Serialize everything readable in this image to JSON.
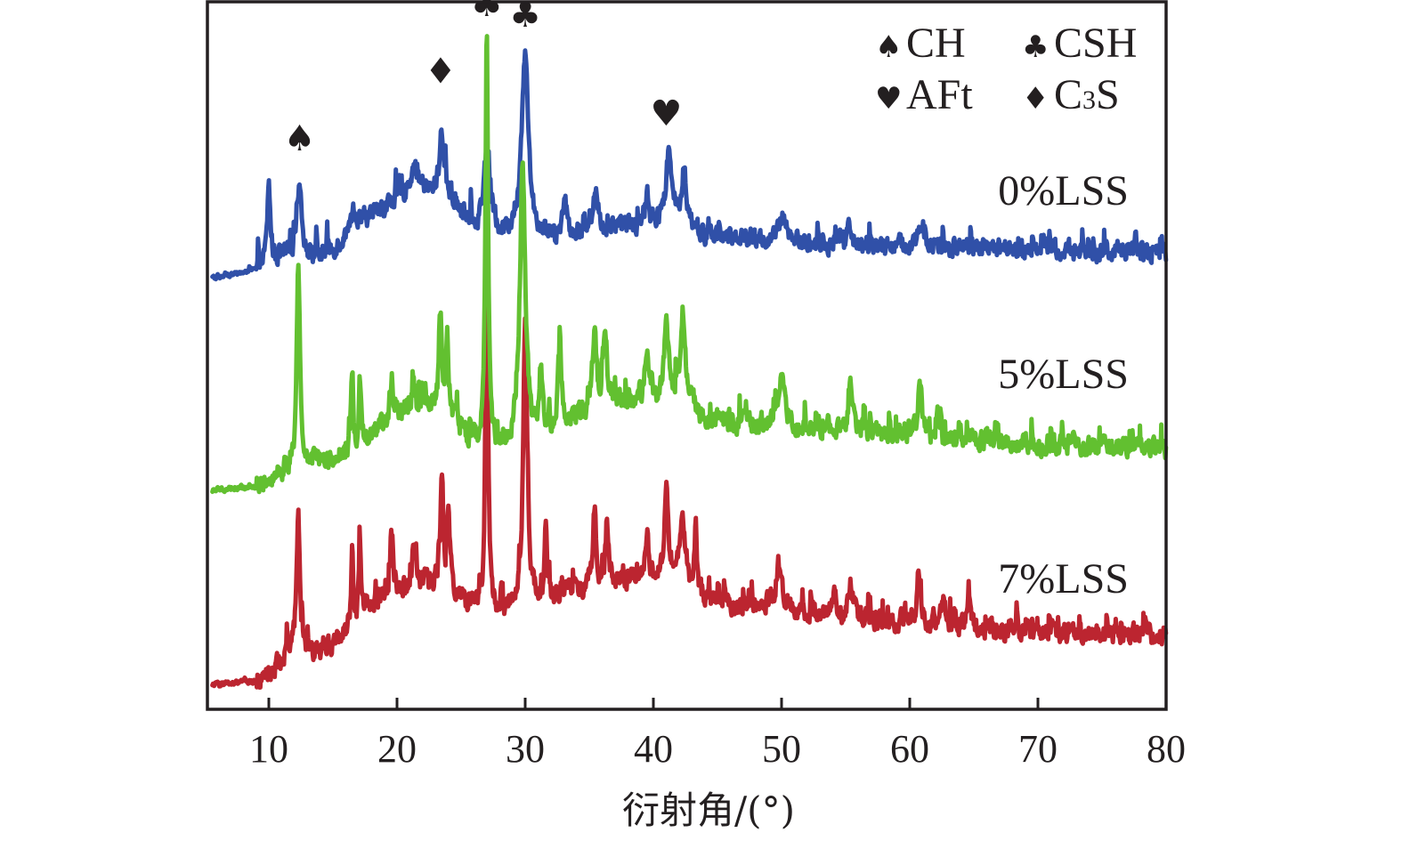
{
  "chart_data": {
    "type": "line",
    "title": "",
    "xlabel": "衍射角/(°)",
    "ylabel": "",
    "xlim": [
      5.2,
      80
    ],
    "ylim": [
      0,
      100
    ],
    "x_ticks": [
      10,
      20,
      30,
      40,
      50,
      60,
      70,
      80
    ],
    "x_tick_labels": [
      "10",
      "20",
      "30",
      "40",
      "50",
      "60",
      "70",
      "80"
    ],
    "y_ticks_shown": false,
    "grid": false,
    "intensity_units": "arbitrary (stacked, offset)",
    "series": [
      {
        "name": "0%LSS",
        "color": "#3050a8",
        "baseline": [
          [
            6,
            61
          ],
          [
            9,
            62
          ],
          [
            11,
            64
          ],
          [
            13,
            63.5
          ],
          [
            15,
            65
          ],
          [
            17,
            69
          ],
          [
            20,
            72
          ],
          [
            22,
            73.5
          ],
          [
            24,
            72.5
          ],
          [
            26,
            68
          ],
          [
            28,
            67.5
          ],
          [
            32,
            67
          ],
          [
            36,
            68
          ],
          [
            40,
            68.5
          ],
          [
            42,
            70
          ],
          [
            44,
            67
          ],
          [
            50,
            66
          ],
          [
            60,
            65.5
          ],
          [
            70,
            65
          ],
          [
            80,
            64.5
          ]
        ],
        "peaks": [
          [
            10.0,
            74,
            0.15
          ],
          [
            12.4,
            74,
            0.25
          ],
          [
            16.6,
            70,
            0.12
          ],
          [
            19.6,
            72,
            0.15
          ],
          [
            21.3,
            76.5,
            0.4
          ],
          [
            23.5,
            82,
            0.2
          ],
          [
            27.0,
            79,
            0.3
          ],
          [
            30.0,
            93,
            0.3
          ],
          [
            33.1,
            73.5,
            0.15
          ],
          [
            35.5,
            73.5,
            0.2
          ],
          [
            39.5,
            73,
            0.2
          ],
          [
            41.2,
            79,
            0.25
          ],
          [
            42.4,
            77,
            0.2
          ],
          [
            50.1,
            70,
            0.3
          ],
          [
            55.3,
            68.5,
            0.2
          ],
          [
            60.9,
            69,
            0.25
          ],
          [
            70.4,
            67,
            0.1
          ],
          [
            77.6,
            67,
            0.1
          ]
        ],
        "noise": 1.4,
        "label": "0%LSS"
      },
      {
        "name": "5%LSS",
        "color": "#62c030",
        "baseline": [
          [
            6,
            31
          ],
          [
            9,
            31.5
          ],
          [
            11,
            33.5
          ],
          [
            13,
            34.5
          ],
          [
            16,
            36
          ],
          [
            18,
            39
          ],
          [
            20,
            41
          ],
          [
            22,
            42.5
          ],
          [
            24,
            42
          ],
          [
            26,
            37.5
          ],
          [
            28,
            37
          ],
          [
            32,
            40
          ],
          [
            36,
            43
          ],
          [
            40,
            44
          ],
          [
            42,
            45
          ],
          [
            44,
            41
          ],
          [
            50,
            40
          ],
          [
            56,
            39
          ],
          [
            62,
            38.5
          ],
          [
            70,
            37.5
          ],
          [
            80,
            37
          ]
        ],
        "peaks": [
          [
            12.3,
            63,
            0.15
          ],
          [
            16.5,
            48,
            0.1
          ],
          [
            17.1,
            47,
            0.1
          ],
          [
            19.6,
            47,
            0.15
          ],
          [
            21.3,
            46.5,
            0.15
          ],
          [
            23.4,
            56,
            0.15
          ],
          [
            23.9,
            52,
            0.15
          ],
          [
            27.0,
            95.5,
            0.12
          ],
          [
            29.8,
            76,
            0.25
          ],
          [
            31.2,
            49,
            0.15
          ],
          [
            32.7,
            52,
            0.15
          ],
          [
            35.4,
            53,
            0.2
          ],
          [
            36.2,
            53,
            0.2
          ],
          [
            39.5,
            51,
            0.2
          ],
          [
            41.0,
            55,
            0.2
          ],
          [
            42.3,
            54,
            0.25
          ],
          [
            50.0,
            47.5,
            0.3
          ],
          [
            55.4,
            45.5,
            0.25
          ],
          [
            60.8,
            45.5,
            0.2
          ],
          [
            62.2,
            42,
            0.15
          ]
        ],
        "noise": 1.5,
        "label": "5%LSS"
      },
      {
        "name": "7%LSS",
        "color": "#bc2530",
        "baseline": [
          [
            6,
            3.5
          ],
          [
            9,
            4
          ],
          [
            11,
            6.5
          ],
          [
            12,
            9
          ],
          [
            13,
            7.5
          ],
          [
            15,
            9
          ],
          [
            16.5,
            11.5
          ],
          [
            18,
            15
          ],
          [
            20,
            17
          ],
          [
            22,
            18
          ],
          [
            24,
            17.5
          ],
          [
            26,
            14
          ],
          [
            28,
            14
          ],
          [
            32,
            16
          ],
          [
            36,
            18
          ],
          [
            40,
            19
          ],
          [
            42,
            20
          ],
          [
            44,
            15.5
          ],
          [
            50,
            14
          ],
          [
            56,
            13
          ],
          [
            62,
            12
          ],
          [
            70,
            11
          ],
          [
            80,
            10.5
          ]
        ],
        "peaks": [
          [
            12.3,
            27,
            0.15
          ],
          [
            16.5,
            23,
            0.1
          ],
          [
            17.1,
            23.5,
            0.1
          ],
          [
            19.6,
            24.5,
            0.12
          ],
          [
            21.3,
            23,
            0.15
          ],
          [
            23.5,
            32,
            0.15
          ],
          [
            24.0,
            28,
            0.15
          ],
          [
            27.0,
            64,
            0.12
          ],
          [
            30.0,
            56,
            0.18
          ],
          [
            31.6,
            28.5,
            0.1
          ],
          [
            35.4,
            29,
            0.15
          ],
          [
            36.4,
            26,
            0.15
          ],
          [
            39.5,
            25,
            0.15
          ],
          [
            41.0,
            32,
            0.15
          ],
          [
            42.3,
            27.5,
            0.2
          ],
          [
            43.3,
            26.5,
            0.1
          ],
          [
            49.8,
            20.5,
            0.3
          ],
          [
            54.1,
            16,
            0.15
          ],
          [
            55.4,
            18,
            0.2
          ],
          [
            60.7,
            19.5,
            0.15
          ],
          [
            62.6,
            16,
            0.15
          ],
          [
            64.6,
            15,
            0.15
          ]
        ],
        "noise": 1.5,
        "label": "7%LSS"
      }
    ],
    "annotations": [
      {
        "symbol": "♠",
        "phase": "CH",
        "x": 12.4,
        "y": 79
      },
      {
        "symbol": "♦",
        "phase": "C₃S",
        "x": 23.4,
        "y": 88.5
      },
      {
        "symbol": "♣",
        "phase": "CSH",
        "x": 27.0,
        "y": 98
      },
      {
        "symbol": "♣",
        "phase": "CSH",
        "x": 30.0,
        "y": 96.5
      },
      {
        "symbol": "♥",
        "phase": "AFt",
        "x": 41.0,
        "y": 82.5
      }
    ],
    "legend": {
      "placement": "top-right",
      "entries": [
        {
          "symbol": "♠",
          "label": "CH"
        },
        {
          "symbol": "♣",
          "label": "CSH"
        },
        {
          "symbol": "♥",
          "label": "AFt"
        },
        {
          "symbol": "♦",
          "label_main": "C",
          "label_sub": "3",
          "label_end": "S",
          "label": "C₃S"
        }
      ]
    }
  }
}
